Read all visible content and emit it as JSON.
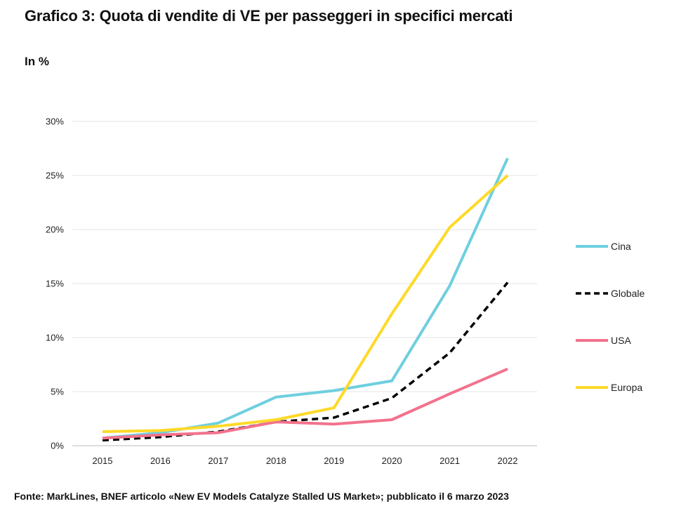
{
  "chart_data": {
    "type": "line",
    "title": "Grafico 3: Quota di vendite di VE per passeggeri in specifici mercati",
    "unit_label": "In %",
    "xlabel": "",
    "ylabel": "In %",
    "x": [
      "2015",
      "2016",
      "2017",
      "2018",
      "2019",
      "2020",
      "2021",
      "2022"
    ],
    "ylim": [
      0,
      30
    ],
    "yticks": [
      0,
      5,
      10,
      15,
      20,
      25,
      30
    ],
    "ytick_labels": [
      "0%",
      "5%",
      "10%",
      "15%",
      "20%",
      "25%",
      "30%"
    ],
    "grid": true,
    "legend_position": "right",
    "series": [
      {
        "name": "Cina",
        "color": "#6FCFDF",
        "dashed": false,
        "values": [
          0.7,
          1.2,
          2.1,
          4.5,
          5.1,
          6.0,
          14.8,
          26.6
        ]
      },
      {
        "name": "Globale",
        "color": "#000000",
        "dashed": true,
        "values": [
          0.5,
          0.8,
          1.3,
          2.2,
          2.6,
          4.4,
          8.6,
          15.1
        ]
      },
      {
        "name": "USA",
        "color": "#F2728C",
        "dashed": false,
        "values": [
          0.7,
          1.0,
          1.2,
          2.2,
          2.0,
          2.4,
          4.8,
          7.1
        ]
      },
      {
        "name": "Europa",
        "color": "#FFD928",
        "dashed": false,
        "values": [
          1.3,
          1.4,
          1.8,
          2.4,
          3.5,
          12.2,
          20.2,
          25.0
        ]
      }
    ],
    "source": "Fonte: MarkLines, BNEF articolo «New EV Models Catalyze Stalled US Market»; pubblicato il 6 marzo 2023"
  }
}
